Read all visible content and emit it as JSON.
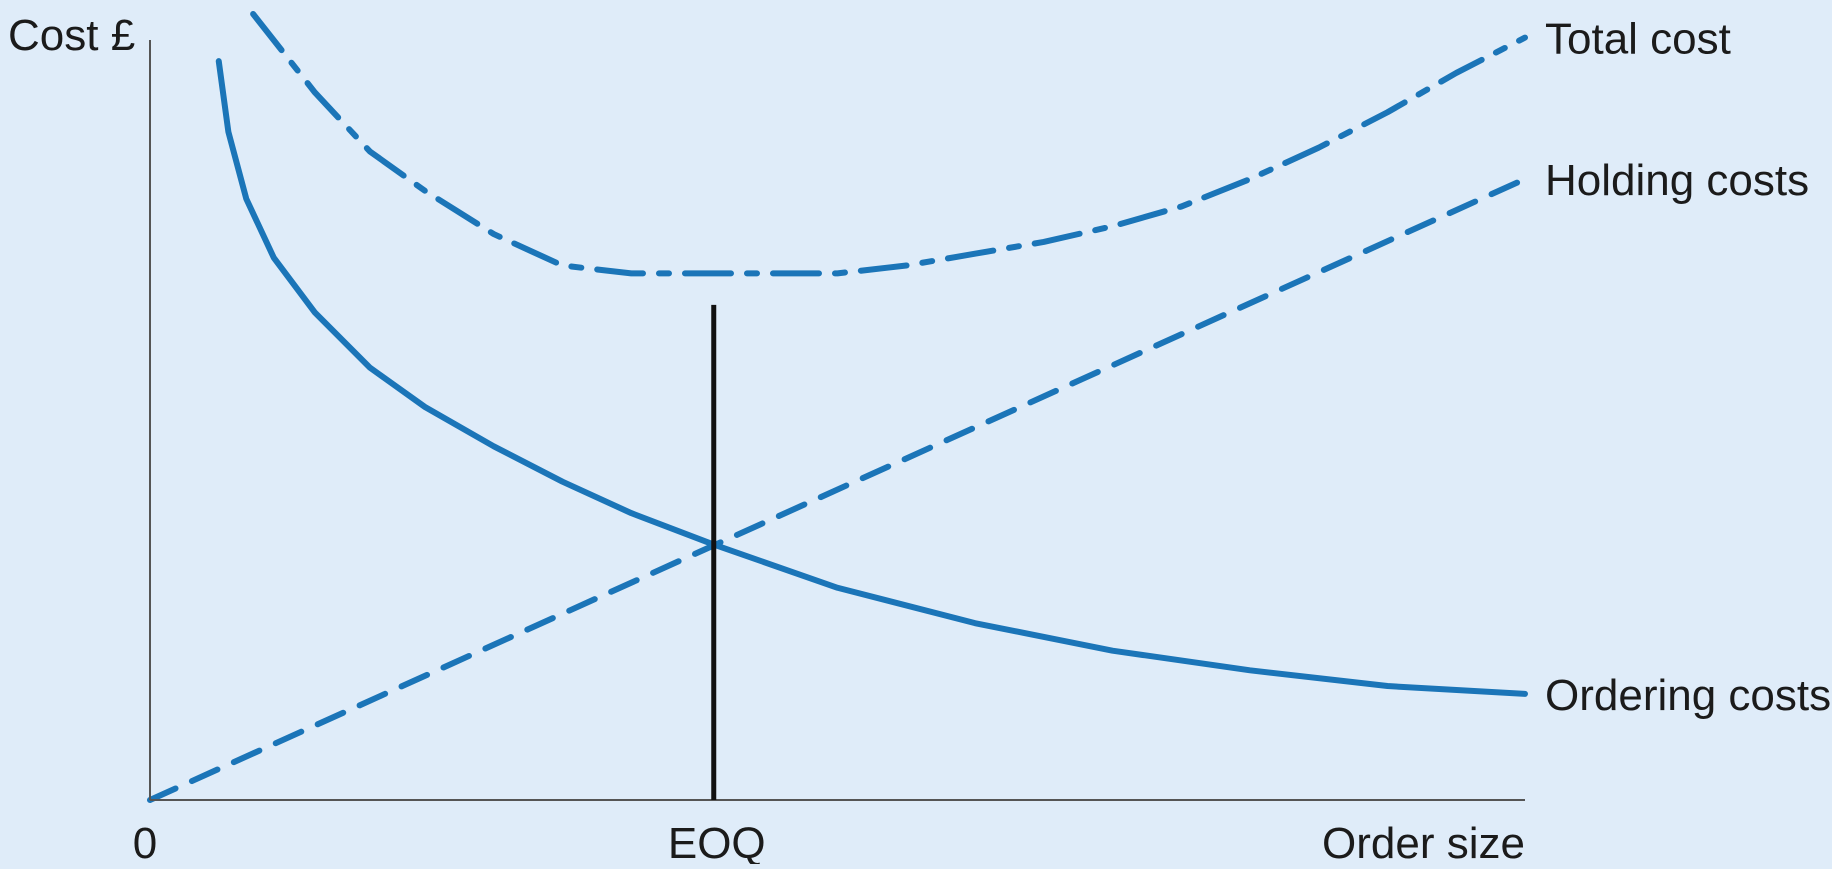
{
  "chart_data": {
    "type": "line",
    "title": "",
    "ylabel": "Cost £",
    "xlabel": "Order size",
    "origin_label": "0",
    "eoq_label": "EOQ",
    "xlim": [
      0,
      100
    ],
    "ylim": [
      0,
      100
    ],
    "eoq_x": 41,
    "eoq_line_top": 63,
    "grid": false,
    "legend": "none",
    "colors": {
      "series": "#1b75b8",
      "axis": "#555555",
      "eoq_line": "#111111",
      "background": "#dfecf9"
    },
    "series": [
      {
        "name": "Total cost",
        "style": "dash-dot",
        "x": [
          7.5,
          12,
          16,
          20,
          25,
          30,
          35,
          40,
          45,
          50,
          55,
          60,
          65,
          70,
          75,
          80,
          85,
          90,
          95,
          100
        ],
        "y": [
          100,
          90,
          82.5,
          77.5,
          72,
          68,
          67,
          67,
          67,
          67,
          68,
          69.5,
          71,
          73,
          75.5,
          79,
          83,
          87.5,
          92.5,
          97
        ]
      },
      {
        "name": "Holding costs",
        "style": "dashed",
        "x": [
          0,
          100
        ],
        "y": [
          0,
          79
        ]
      },
      {
        "name": "Ordering costs",
        "style": "solid",
        "x": [
          5,
          5.7,
          7,
          9,
          12,
          16,
          20,
          25,
          30,
          35,
          41,
          50,
          60,
          70,
          80,
          90,
          100
        ],
        "y": [
          94,
          85,
          76.5,
          69,
          62,
          55,
          50,
          45,
          40.5,
          36.5,
          32.5,
          27,
          22.5,
          19,
          16.5,
          14.5,
          13.5
        ]
      }
    ]
  }
}
